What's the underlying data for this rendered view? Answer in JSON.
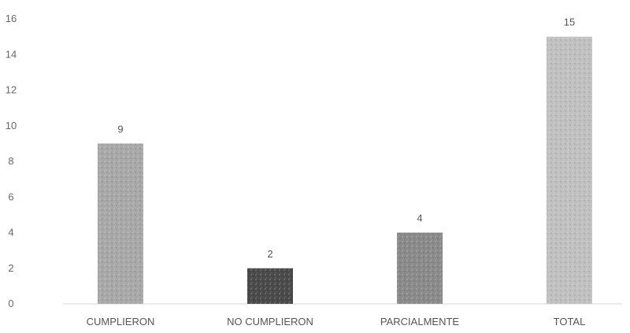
{
  "chart_data": {
    "type": "bar",
    "categories": [
      "CUMPLIERON",
      "NO CUMPLIERON",
      "PARCIALMENTE",
      "TOTAL"
    ],
    "values": [
      9,
      2,
      4,
      15
    ],
    "data_labels": [
      "9",
      "2",
      "4",
      "15"
    ],
    "ylim": [
      0,
      16
    ],
    "yticks": [
      0,
      2,
      4,
      6,
      8,
      10,
      12,
      14,
      16
    ],
    "ytick_labels": [
      "0",
      "2",
      "4",
      "6",
      "8",
      "10",
      "12",
      "14",
      "16"
    ],
    "grid": false,
    "legend": "none",
    "colors": [
      "#a8a8a8",
      "#4a4a4a",
      "#8a8a8a",
      "#c0c0c0"
    ]
  }
}
